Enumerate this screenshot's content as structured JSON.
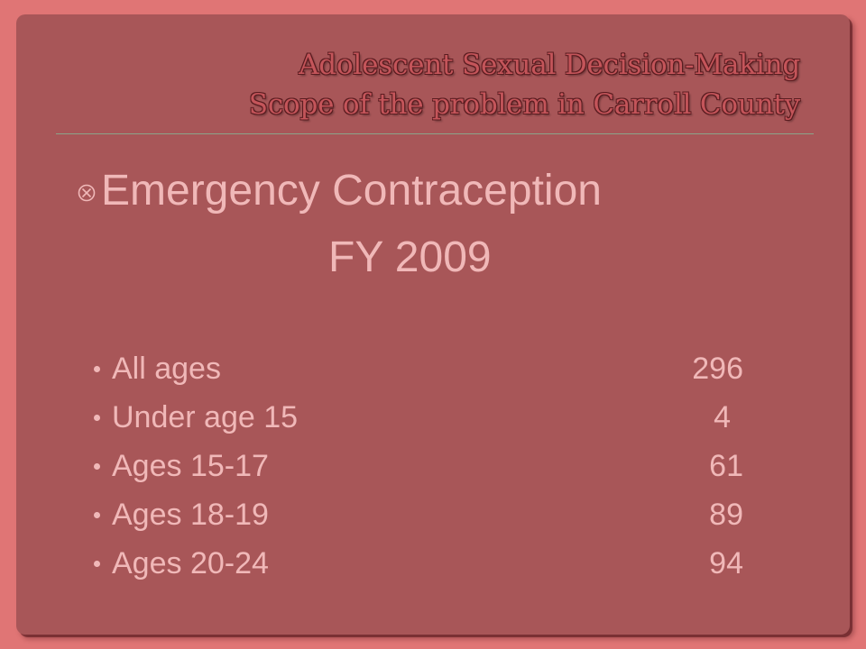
{
  "slide": {
    "title_lines": [
      "Adolescent Sexual Decision-Making",
      "Scope of the problem in Carroll County"
    ],
    "heading_line1": "Emergency Contraception",
    "heading_line2": "FY 2009",
    "bullet_icon": "circled-times-icon",
    "items": [
      {
        "label": "All ages",
        "value": "296"
      },
      {
        "label": "Under age 15",
        "value": "4"
      },
      {
        "label": "Ages 15-17",
        "value": "61"
      },
      {
        "label": "Ages 18-19",
        "value": "89"
      },
      {
        "label": "Ages 20-24",
        "value": "94"
      }
    ]
  }
}
